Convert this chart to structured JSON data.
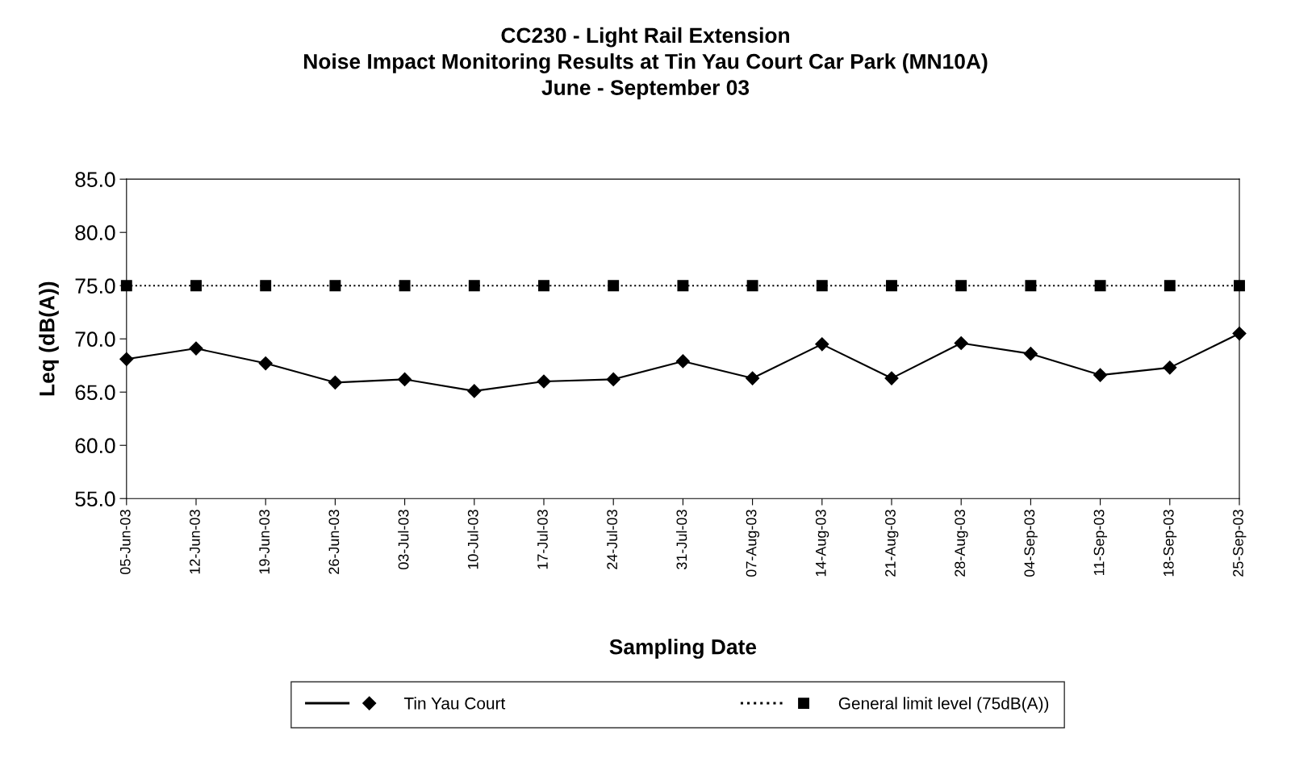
{
  "chart_data": {
    "type": "line",
    "title": "CC230 - Light Rail Extension\nNoise Impact Monitoring Results at Tin Yau Court Car Park (MN10A)\nJune - September 03",
    "xlabel": "Sampling Date",
    "ylabel": "Leq (dB(A))",
    "categories": [
      "05-Jun-03",
      "12-Jun-03",
      "19-Jun-03",
      "26-Jun-03",
      "03-Jul-03",
      "10-Jul-03",
      "17-Jul-03",
      "24-Jul-03",
      "31-Jul-03",
      "07-Aug-03",
      "14-Aug-03",
      "21-Aug-03",
      "28-Aug-03",
      "04-Sep-03",
      "11-Sep-03",
      "18-Sep-03",
      "25-Sep-03"
    ],
    "series": [
      {
        "name": "Tin Yau Court",
        "color": "#000000",
        "marker": "diamond",
        "line_style": "solid",
        "values": [
          68.1,
          69.1,
          67.7,
          65.9,
          66.2,
          65.1,
          66.0,
          66.2,
          67.9,
          66.3,
          69.5,
          66.3,
          69.6,
          68.6,
          66.6,
          67.3,
          70.5
        ]
      },
      {
        "name": "General limit level (75dB(A))",
        "color": "#000000",
        "marker": "square",
        "line_style": "dotted",
        "values": [
          75,
          75,
          75,
          75,
          75,
          75,
          75,
          75,
          75,
          75,
          75,
          75,
          75,
          75,
          75,
          75,
          75
        ]
      }
    ],
    "ylim": [
      55,
      85
    ],
    "yticks": [
      {
        "value": 55,
        "label": "55.0"
      },
      {
        "value": 60,
        "label": "60.0"
      },
      {
        "value": 65,
        "label": "65.0"
      },
      {
        "value": 70,
        "label": "70.0"
      },
      {
        "value": 75,
        "label": "75.0"
      },
      {
        "value": 80,
        "label": "80.0"
      },
      {
        "value": 85,
        "label": "85.0"
      }
    ],
    "grid": false,
    "legend": "bottom"
  }
}
